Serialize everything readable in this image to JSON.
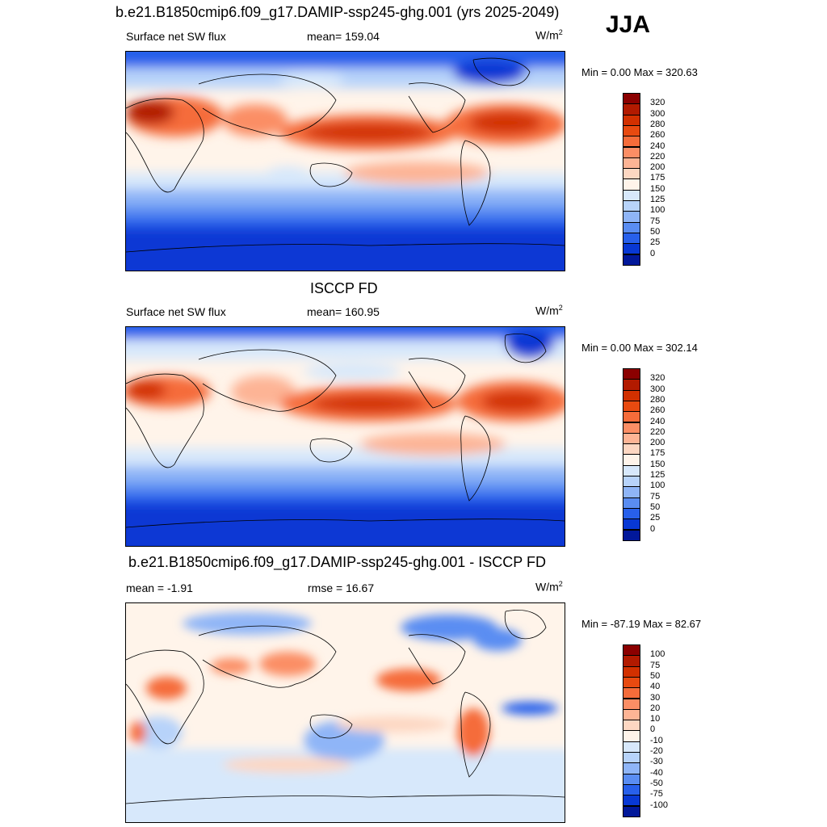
{
  "season": "JJA",
  "panels": [
    {
      "title": "b.e21.B1850cmip6.f09_g17.DAMIP-ssp245-ghg.001 (yrs 2025-2049)",
      "left_label": "Surface net SW flux",
      "center_label": "mean= 159.04",
      "units_base": "W/m",
      "units_exp": "2",
      "minmax": "Min =   0.00 Max = 320.63",
      "kind": "abs"
    },
    {
      "title": "ISCCP FD",
      "left_label": "Surface net SW flux",
      "center_label": "mean= 160.95",
      "units_base": "W/m",
      "units_exp": "2",
      "minmax": "Min =   0.00 Max = 302.14",
      "kind": "abs"
    },
    {
      "title": "b.e21.B1850cmip6.f09_g17.DAMIP-ssp245-ghg.001 - ISCCP FD",
      "left_label": "mean =  -1.91",
      "center_label": "rmse =  16.67",
      "units_base": "W/m",
      "units_exp": "2",
      "minmax": "Min = -87.19 Max =  82.67",
      "kind": "diff"
    }
  ],
  "colorbars": {
    "abs": {
      "labels": [
        "320",
        "300",
        "280",
        "260",
        "240",
        "220",
        "200",
        "175",
        "150",
        "125",
        "100",
        "75",
        "50",
        "25",
        "0"
      ],
      "colors": [
        "#8b0000",
        "#b21a00",
        "#d23000",
        "#e84a10",
        "#f56c3a",
        "#fb8e65",
        "#fdb495",
        "#fdd7c2",
        "#fff4ea",
        "#d7e8fb",
        "#b7d3fa",
        "#8fb5f7",
        "#5a8df2",
        "#2860eb",
        "#0838d4",
        "#02189a"
      ]
    },
    "diff": {
      "labels": [
        "100",
        "75",
        "50",
        "40",
        "30",
        "20",
        "10",
        "0",
        "-10",
        "-20",
        "-30",
        "-40",
        "-50",
        "-75",
        "-100"
      ],
      "colors": [
        "#8b0000",
        "#b21a00",
        "#d23000",
        "#e84a10",
        "#f56c3a",
        "#fb8e65",
        "#fdb495",
        "#fdd7c2",
        "#fff4ea",
        "#d7e8fb",
        "#b7d3fa",
        "#8fb5f7",
        "#5a8df2",
        "#2860eb",
        "#0838d4",
        "#02189a"
      ]
    }
  }
}
